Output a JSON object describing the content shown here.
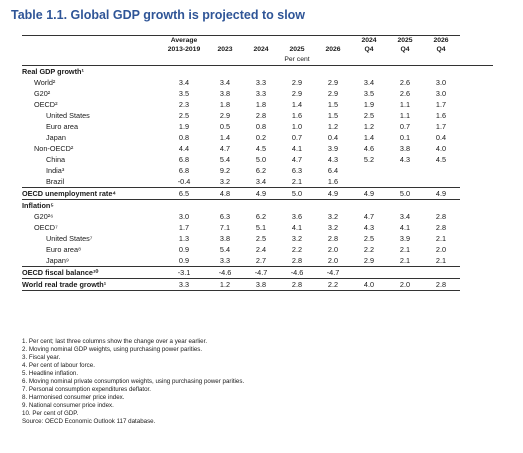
{
  "title": "Table 1.1. Global GDP growth is projected to slow",
  "headers": [
    "Average\n2013-2019",
    "2023",
    "2024",
    "2025",
    "2026",
    "2024\nQ4",
    "2025\nQ4",
    "2026\nQ4"
  ],
  "header_top": [
    "Average",
    "",
    "",
    "",
    "",
    "2024",
    "2025",
    "2026"
  ],
  "header_bottom": [
    "2013-2019",
    "2023",
    "2024",
    "2025",
    "2026",
    "Q4",
    "Q4",
    "Q4"
  ],
  "unit": "Per cent",
  "rows": [
    {
      "label": "Real GDP growth¹",
      "indent": 0,
      "style": "section",
      "values": [
        "",
        "",
        "",
        "",
        "",
        "",
        "",
        ""
      ]
    },
    {
      "label": "World²",
      "indent": 1,
      "style": "normal",
      "values": [
        "3.4",
        "3.4",
        "3.3",
        "2.9",
        "2.9",
        "3.4",
        "2.6",
        "3.0"
      ]
    },
    {
      "label": "G20²",
      "indent": 1,
      "style": "normal",
      "values": [
        "3.5",
        "3.8",
        "3.3",
        "2.9",
        "2.9",
        "3.5",
        "2.6",
        "3.0"
      ]
    },
    {
      "label": "OECD²",
      "indent": 1,
      "style": "normal",
      "values": [
        "2.3",
        "1.8",
        "1.8",
        "1.4",
        "1.5",
        "1.9",
        "1.1",
        "1.7"
      ]
    },
    {
      "label": "United States",
      "indent": 2,
      "style": "normal",
      "values": [
        "2.5",
        "2.9",
        "2.8",
        "1.6",
        "1.5",
        "2.5",
        "1.1",
        "1.6"
      ]
    },
    {
      "label": "Euro area",
      "indent": 2,
      "style": "normal",
      "values": [
        "1.9",
        "0.5",
        "0.8",
        "1.0",
        "1.2",
        "1.2",
        "0.7",
        "1.7"
      ]
    },
    {
      "label": "Japan",
      "indent": 2,
      "style": "normal",
      "values": [
        "0.8",
        "1.4",
        "0.2",
        "0.7",
        "0.4",
        "1.4",
        "0.1",
        "0.4"
      ]
    },
    {
      "label": "Non-OECD²",
      "indent": 1,
      "style": "normal",
      "values": [
        "4.4",
        "4.7",
        "4.5",
        "4.1",
        "3.9",
        "4.6",
        "3.8",
        "4.0"
      ]
    },
    {
      "label": "China",
      "indent": 2,
      "style": "normal",
      "values": [
        "6.8",
        "5.4",
        "5.0",
        "4.7",
        "4.3",
        "5.2",
        "4.3",
        "4.5"
      ]
    },
    {
      "label": "India³",
      "indent": 2,
      "style": "normal",
      "values": [
        "6.8",
        "9.2",
        "6.2",
        "6.3",
        "6.4",
        "",
        "",
        ""
      ]
    },
    {
      "label": "Brazil",
      "indent": 2,
      "style": "normal",
      "values": [
        "-0.4",
        "3.2",
        "3.4",
        "2.1",
        "1.6",
        "",
        "",
        ""
      ]
    },
    {
      "label": "OECD unemployment rate⁴",
      "indent": 0,
      "style": "bold",
      "values": [
        "6.5",
        "4.8",
        "4.9",
        "5.0",
        "4.9",
        "4.9",
        "5.0",
        "4.9"
      ]
    },
    {
      "label": "Inflation⁵",
      "indent": 0,
      "style": "section",
      "values": [
        "",
        "",
        "",
        "",
        "",
        "",
        "",
        ""
      ]
    },
    {
      "label": "G20²⁶",
      "indent": 1,
      "style": "normal",
      "values": [
        "3.0",
        "6.3",
        "6.2",
        "3.6",
        "3.2",
        "4.7",
        "3.4",
        "2.8"
      ]
    },
    {
      "label": "OECD⁷",
      "indent": 1,
      "style": "normal",
      "values": [
        "1.7",
        "7.1",
        "5.1",
        "4.1",
        "3.2",
        "4.3",
        "4.1",
        "2.8"
      ]
    },
    {
      "label": "United States⁷",
      "indent": 2,
      "style": "normal",
      "values": [
        "1.3",
        "3.8",
        "2.5",
        "3.2",
        "2.8",
        "2.5",
        "3.9",
        "2.1"
      ]
    },
    {
      "label": "Euro area⁸",
      "indent": 2,
      "style": "normal",
      "values": [
        "0.9",
        "5.4",
        "2.4",
        "2.2",
        "2.0",
        "2.2",
        "2.1",
        "2.0"
      ]
    },
    {
      "label": "Japan⁹",
      "indent": 2,
      "style": "normal",
      "values": [
        "0.9",
        "3.3",
        "2.7",
        "2.8",
        "2.0",
        "2.9",
        "2.1",
        "2.1"
      ]
    },
    {
      "label": "OECD fiscal balance¹⁰",
      "indent": 0,
      "style": "bold",
      "values": [
        "-3.1",
        "-4.6",
        "-4.7",
        "-4.6",
        "-4.7",
        "",
        "",
        ""
      ]
    },
    {
      "label": "World real trade growth¹",
      "indent": 0,
      "style": "bold",
      "values": [
        "3.3",
        "1.2",
        "3.8",
        "2.8",
        "2.2",
        "4.0",
        "2.0",
        "2.8"
      ]
    }
  ],
  "notes": [
    "1. Per cent; last three columns show the change over a year earlier.",
    "2. Moving nominal GDP weights, using purchasing power parities.",
    "3. Fiscal year.",
    "4. Per cent of labour force.",
    "5. Headline inflation.",
    "6. Moving nominal private consumption weights, using purchasing power parities.",
    "7. Personal consumption expenditures deflator.",
    "8. Harmonised consumer price index.",
    "9. National consumer price index.",
    "10. Per cent of GDP.",
    "Source: OECD Economic Outlook 117 database."
  ],
  "colors": {
    "title": "#2f5597",
    "shading": "#e8e8e8",
    "rule": "#333333"
  }
}
